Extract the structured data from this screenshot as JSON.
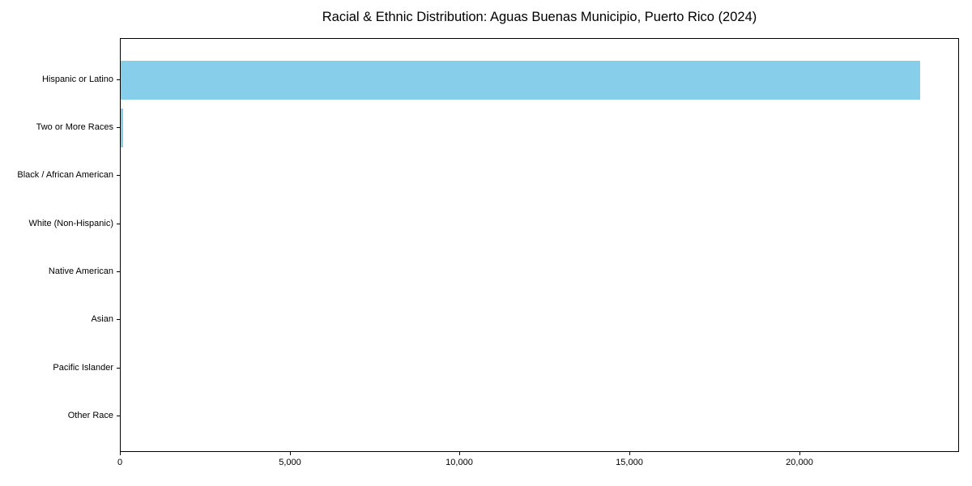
{
  "chart_data": {
    "type": "bar",
    "orientation": "horizontal",
    "title": "Racial & Ethnic Distribution: Aguas Buenas Municipio, Puerto Rico (2024)",
    "categories": [
      "Hispanic or Latino",
      "Two or More Races",
      "Black / African American",
      "White (Non-Hispanic)",
      "Native American",
      "Asian",
      "Pacific Islander",
      "Other Race"
    ],
    "values": [
      23520,
      70,
      0,
      0,
      0,
      0,
      0,
      0
    ],
    "xlabel": "",
    "ylabel": "",
    "xlim": [
      0,
      24700
    ],
    "xticks": [
      0,
      5000,
      10000,
      15000,
      20000
    ],
    "xtick_labels": [
      "0",
      "5,000",
      "10,000",
      "15,000",
      "20,000"
    ],
    "bar_color": "#87CEEB",
    "axis_color": "#000000",
    "background_color": "#ffffff",
    "grid": false,
    "legend": null
  }
}
